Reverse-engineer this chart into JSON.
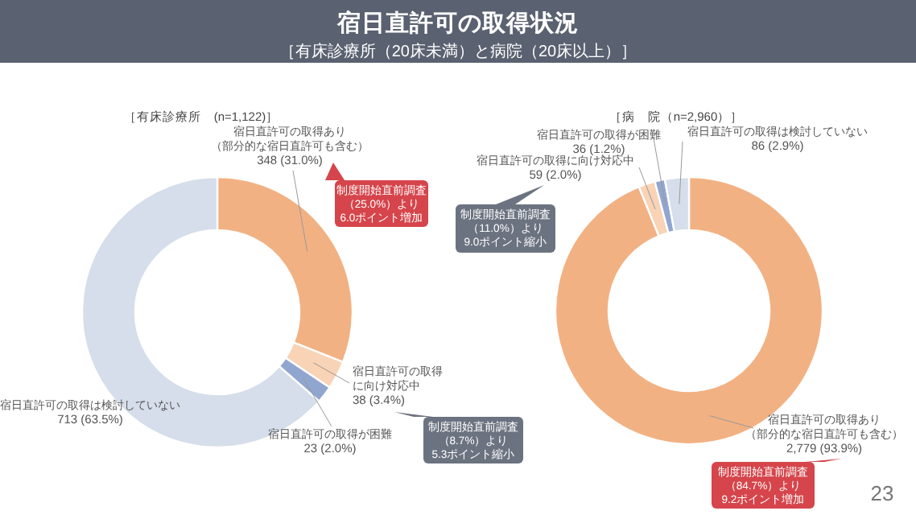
{
  "chart_data": [
    {
      "type": "donut",
      "title": "宿日直許可の取得状況",
      "subtitle": "［有床診療所（20床未満）と病院（20床以上）］",
      "categories": [
        "宿日直許可の取得あり（部分的な宿日直許可も含む）",
        "宿日直許可の取得に向け対応中",
        "宿日直許可の取得が困難",
        "宿日直許可の取得は検討していない"
      ],
      "values": [
        348,
        38,
        23,
        713
      ],
      "value_labels": [
        "348 (31.0%)",
        "38 (3.4%)",
        "23 (2.0%)",
        "713 (63.5%)"
      ],
      "colors": [
        "#f2b183",
        "#f8d3b6",
        "#91a6cf",
        "#d5deea"
      ],
      "annotations": [
        "［有床診療所　(n=1,122)］",
        "制度開始直前調査（25.0%）より6.0ポイント増加",
        "制度開始直前調査（8.7%）より5.3ポイント縮小"
      ]
    },
    {
      "type": "donut",
      "categories": [
        "宿日直許可の取得あり（部分的な宿日直許可も含む）",
        "宿日直許可の取得に向け対応中",
        "宿日直許可の取得が困難",
        "宿日直許可の取得は検討していない"
      ],
      "values": [
        2779,
        59,
        36,
        86
      ],
      "value_labels": [
        "2,779 (93.9%)",
        "59 (2.0%)",
        "36 (1.2%)",
        "86 (2.9%)"
      ],
      "colors": [
        "#f2b183",
        "#f8d3b6",
        "#91a6cf",
        "#d5deea"
      ],
      "annotations": [
        "［病　院（n=2,960）］",
        "制度開始直前調査（11.0%）より9.0ポイント縮小",
        "制度開始直前調査（84.7%）より9.2ポイント増加",
        "23"
      ]
    }
  ]
}
